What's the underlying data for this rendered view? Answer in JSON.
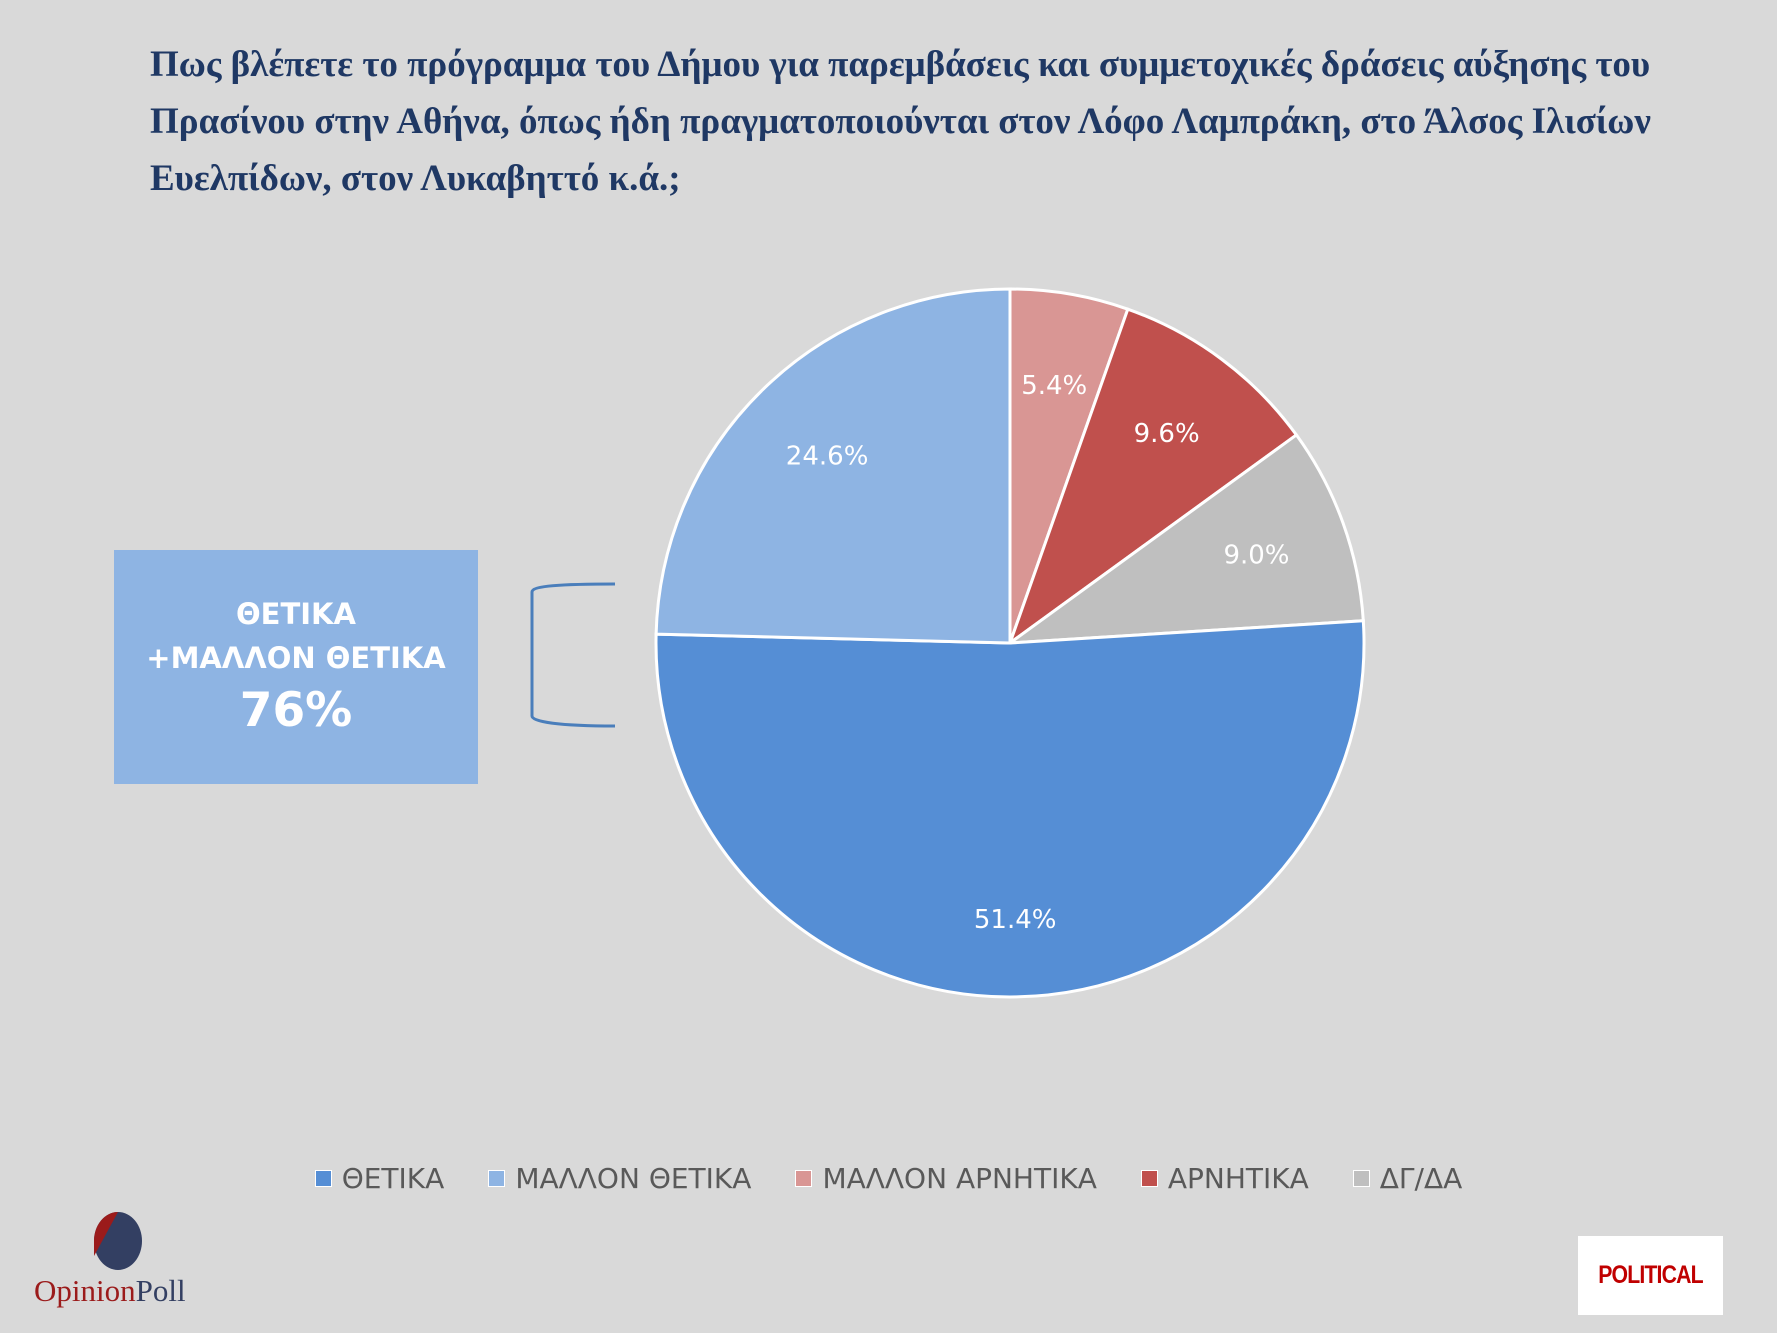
{
  "title": "Πως βλέπετε το πρόγραμμα του Δήμου για παρεμβάσεις και συμμετοχικές δράσεις αύξησης του Πρασίνου στην Αθήνα, όπως ήδη πραγματοποιούνται στον Λόφο Λαμπράκη, στο Άλσος Ιλισίων Ευελπίδων, στον Λυκαβηττό κ.ά.;",
  "callout": {
    "line1": "ΘΕΤΙΚΑ",
    "line2": "+ΜΑΛΛΟΝ ΘΕΤΙΚΑ",
    "value": "76%"
  },
  "chart_data": {
    "type": "pie",
    "start": "top, clockwise",
    "slices": [
      {
        "name": "ΜΑΛΛΟΝ ΑΡΝΗΤΙΚΑ",
        "value": 5.4,
        "label": "5.4%",
        "color": "#D99694"
      },
      {
        "name": "ΑΡΝΗΤΙΚΑ",
        "value": 9.6,
        "label": "9.6%",
        "color": "#C0504D"
      },
      {
        "name": "ΔΓ/ΔΑ",
        "value": 9.0,
        "label": "9.0%",
        "color": "#BFBFBF"
      },
      {
        "name": "ΘΕΤΙΚΑ",
        "value": 51.4,
        "label": "51.4%",
        "color": "#558ED5"
      },
      {
        "name": "ΜΑΛΛΟΝ ΘΕΤΙΚΑ",
        "value": 24.6,
        "label": "24.6%",
        "color": "#8EB4E3"
      }
    ],
    "legend": [
      {
        "label": "ΘΕΤΙΚΑ",
        "color": "#558ED5"
      },
      {
        "label": "ΜΑΛΛΟΝ ΘΕΤΙΚΑ",
        "color": "#8EB4E3"
      },
      {
        "label": "ΜΑΛΛΟΝ ΑΡΝΗΤΙΚΑ",
        "color": "#D99694"
      },
      {
        "label": "ΑΡΝΗΤΙΚΑ",
        "color": "#C0504D"
      },
      {
        "label": "ΔΓ/ΔΑ",
        "color": "#BFBFBF"
      }
    ],
    "legend_position": "bottom"
  },
  "logos": {
    "opinion": "Opinion",
    "poll": "Poll",
    "political": "POLITICAL"
  }
}
